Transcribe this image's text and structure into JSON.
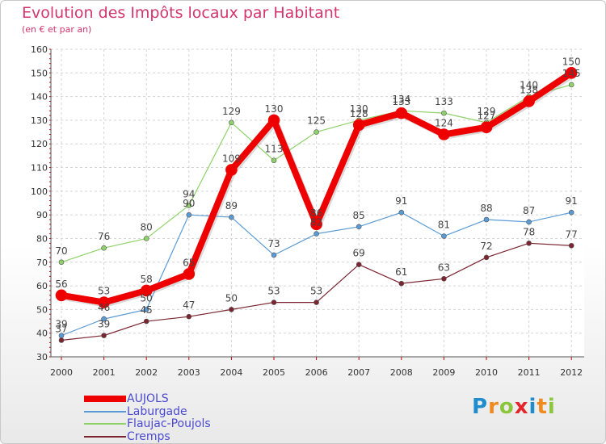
{
  "title": "Evolution des Impôts locaux par Habitant",
  "subtitle": "(en € et par an)",
  "logo": {
    "letters": [
      "P",
      "r",
      "o",
      "x",
      "i",
      "t",
      "i"
    ],
    "colors": [
      "#1e8ccd",
      "#f08a1e",
      "#8cc63e",
      "#e3262b",
      "#1e8ccd",
      "#f08a1e",
      "#8cc63e"
    ]
  },
  "chart_data": {
    "type": "line",
    "title": "Evolution des Impôts locaux par Habitant",
    "ylabel": "(en € et par an)",
    "xlabel": "",
    "ylim": [
      30,
      160
    ],
    "yticks": [
      30,
      40,
      50,
      60,
      70,
      80,
      90,
      100,
      110,
      120,
      130,
      140,
      150,
      160
    ],
    "x": [
      "2000",
      "2001",
      "2002",
      "2003",
      "2004",
      "2005",
      "2006",
      "2007",
      "2008",
      "2009",
      "2010",
      "2011",
      "2012"
    ],
    "grid": true,
    "series": [
      {
        "name": "Flaujac-Poujols",
        "color": "#8fd16a",
        "width": 1.2,
        "values": [
          70,
          76,
          80,
          94,
          129,
          113,
          125,
          130,
          134,
          133,
          129,
          140,
          145
        ]
      },
      {
        "name": "Laburgade",
        "color": "#5b9bd5",
        "width": 1.2,
        "values": [
          39,
          46,
          50,
          90,
          89,
          73,
          82,
          85,
          91,
          81,
          88,
          87,
          91
        ]
      },
      {
        "name": "Cremps",
        "color": "#7b2530",
        "width": 1.2,
        "values": [
          37,
          39,
          45,
          47,
          50,
          53,
          53,
          69,
          61,
          63,
          72,
          78,
          77
        ]
      },
      {
        "name": "AUJOLS",
        "color": "#ee0000",
        "width": 8,
        "values": [
          56,
          53,
          58,
          65,
          109,
          130,
          86,
          128,
          133,
          124,
          127,
          138,
          150
        ]
      }
    ],
    "legend": [
      "AUJOLS",
      "Laburgade",
      "Flaujac-Poujols",
      "Cremps"
    ],
    "legend_position": "bottom-left"
  }
}
